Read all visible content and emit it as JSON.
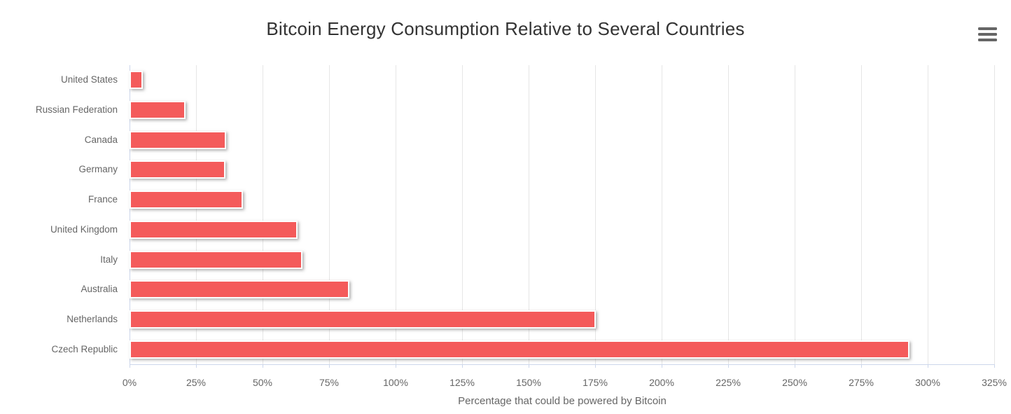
{
  "title": "Bitcoin Energy Consumption Relative to Several Countries",
  "export_menu": {
    "icon": "hamburger-menu-icon"
  },
  "chart_data": {
    "type": "bar",
    "orientation": "horizontal",
    "title": "Bitcoin Energy Consumption Relative to Several Countries",
    "xlabel": "Percentage that could be powered by Bitcoin",
    "ylabel": "",
    "categories": [
      "United States",
      "Russian Federation",
      "Canada",
      "Germany",
      "France",
      "United Kingdom",
      "Italy",
      "Australia",
      "Netherlands",
      "Czech Republic"
    ],
    "values": [
      4.4,
      20.4,
      35.7,
      35.4,
      42.2,
      62.6,
      64.5,
      82.2,
      174.7,
      292.6
    ],
    "xlim": [
      0,
      325
    ],
    "tick_step": 25,
    "tick_labels": [
      "0%",
      "25%",
      "50%",
      "75%",
      "100%",
      "125%",
      "150%",
      "175%",
      "200%",
      "225%",
      "250%",
      "275%",
      "300%",
      "325%"
    ],
    "grid": true,
    "legend": false,
    "colors": {
      "bar_fill": "#f45b5b",
      "bar_border": "#ffffff",
      "gridline": "#e6e6e6",
      "axis_line": "#ccd6eb",
      "label": "#666666",
      "title": "#333333",
      "menu_icon": "#666666"
    }
  }
}
